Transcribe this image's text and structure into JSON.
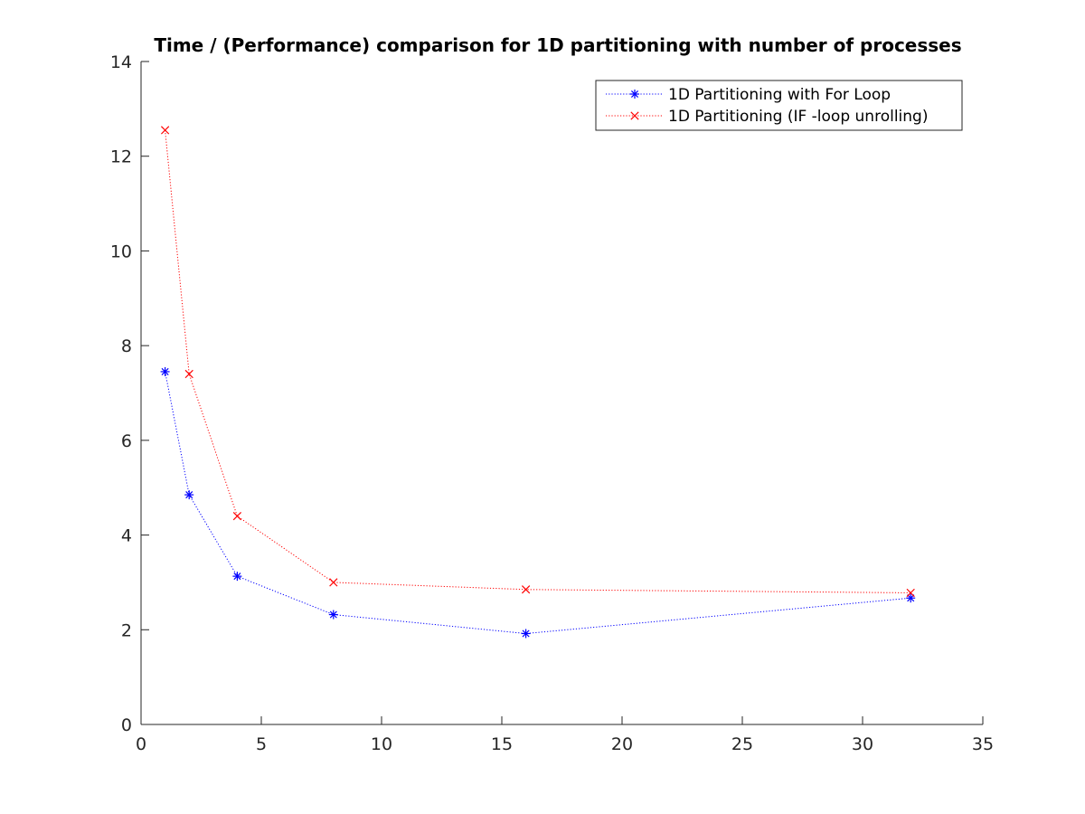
{
  "chart_data": {
    "type": "line",
    "title": "Time / (Performance) comparison for 1D partitioning with number of processes",
    "xlabel": "",
    "ylabel": "",
    "xlim": [
      0,
      35
    ],
    "ylim": [
      0,
      14
    ],
    "xticks": [
      0,
      5,
      10,
      15,
      20,
      25,
      30,
      35
    ],
    "yticks": [
      0,
      2,
      4,
      6,
      8,
      10,
      12,
      14
    ],
    "x": [
      1,
      2,
      4,
      8,
      16,
      32
    ],
    "grid": false,
    "legend_position": "top-right",
    "series": [
      {
        "name": "1D Partitioning with For Loop",
        "values": [
          7.45,
          4.85,
          3.13,
          2.32,
          1.92,
          2.67
        ],
        "color": "#0000ff",
        "marker": "asterisk",
        "line_style": "dotted"
      },
      {
        "name": "1D Partitioning (IF -loop unrolling)",
        "values": [
          12.55,
          7.4,
          4.4,
          3.0,
          2.85,
          2.78
        ],
        "color": "#ff0000",
        "marker": "x",
        "line_style": "dotted"
      }
    ]
  }
}
